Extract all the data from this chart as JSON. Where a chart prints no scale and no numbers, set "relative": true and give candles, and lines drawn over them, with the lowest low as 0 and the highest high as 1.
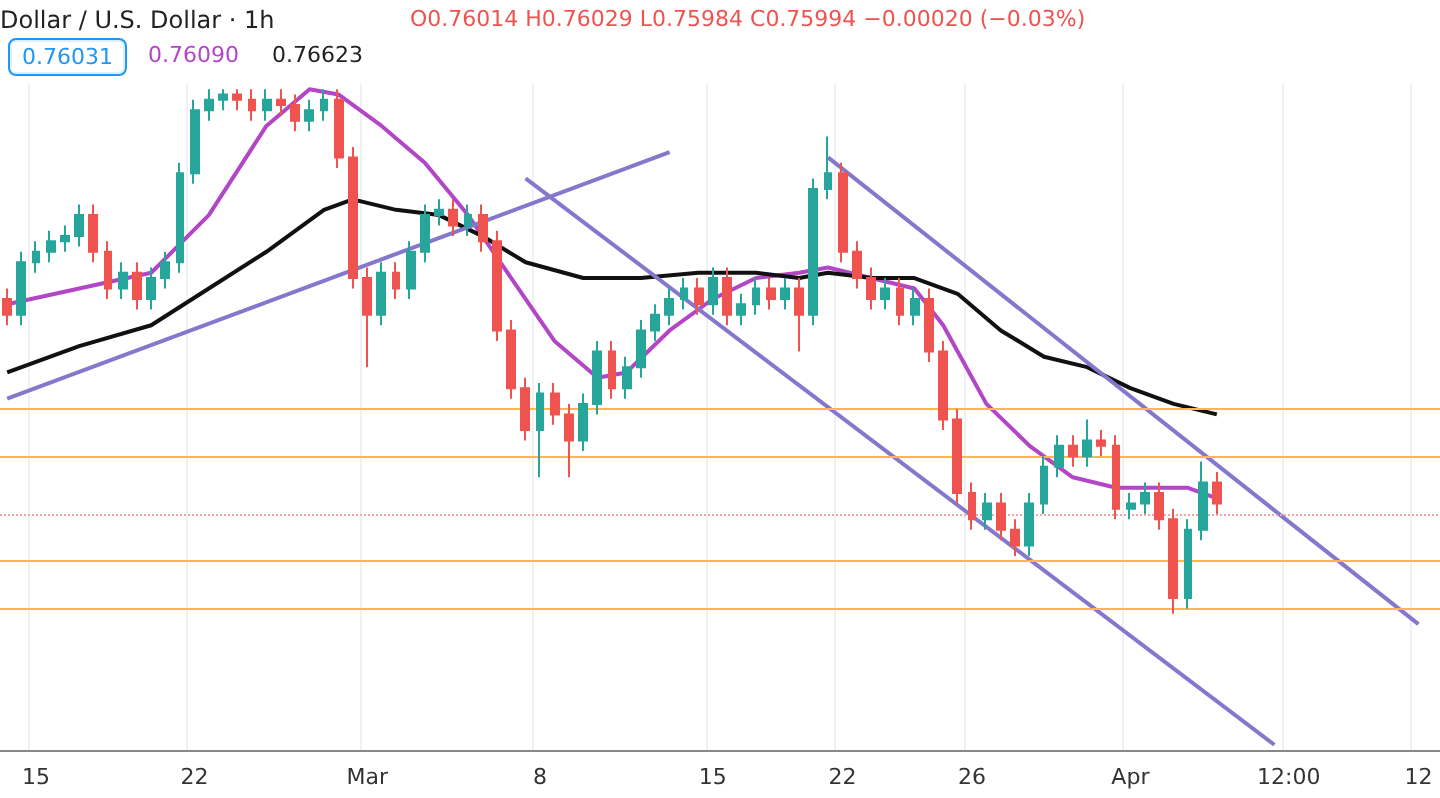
{
  "chart_data": {
    "type": "candlestick",
    "title": "Dollar / U.S. Dollar · 1h",
    "relative": true,
    "grid": "x",
    "categories": [
      null,
      null,
      "15",
      null,
      null,
      null,
      null,
      null,
      null,
      null,
      null,
      null,
      null,
      "22",
      null,
      null,
      null,
      null,
      null,
      null,
      null,
      null,
      null,
      null,
      null,
      "Mar",
      null,
      null,
      null,
      null,
      null,
      null,
      null,
      null,
      null,
      null,
      null,
      "8",
      null,
      null,
      null,
      null,
      null,
      null,
      null,
      null,
      null,
      null,
      null,
      "15",
      null,
      null,
      null,
      null,
      null,
      null,
      null,
      null,
      "22",
      null,
      null,
      null,
      null,
      null,
      null,
      null,
      null,
      "26",
      null,
      null,
      null,
      null,
      null,
      null,
      null,
      null,
      null,
      null,
      "Apr",
      null,
      null,
      null,
      null,
      null,
      null,
      null,
      null,
      null,
      null,
      "12:00",
      null,
      null,
      null,
      null,
      null,
      null,
      null,
      null,
      "12",
      null
    ],
    "ohlc": [
      [
        0.6,
        0.62,
        0.55,
        0.57
      ],
      [
        0.57,
        0.69,
        0.55,
        0.67
      ],
      [
        0.67,
        0.71,
        0.65,
        0.69
      ],
      [
        0.69,
        0.73,
        0.67,
        0.71
      ],
      [
        0.71,
        0.74,
        0.69,
        0.72
      ],
      [
        0.72,
        0.78,
        0.7,
        0.76
      ],
      [
        0.76,
        0.78,
        0.67,
        0.69
      ],
      [
        0.69,
        0.71,
        0.6,
        0.62
      ],
      [
        0.62,
        0.67,
        0.6,
        0.65
      ],
      [
        0.65,
        0.67,
        0.58,
        0.6
      ],
      [
        0.6,
        0.66,
        0.58,
        0.64
      ],
      [
        0.64,
        0.69,
        0.62,
        0.67
      ],
      [
        0.67,
        0.86,
        0.65,
        0.84
      ],
      [
        0.84,
        0.98,
        0.82,
        0.96
      ],
      [
        0.96,
        1.0,
        0.94,
        0.98
      ],
      [
        0.98,
        1.0,
        0.96,
        0.99
      ],
      [
        0.99,
        1.0,
        0.96,
        0.98
      ],
      [
        0.98,
        1.0,
        0.94,
        0.96
      ],
      [
        0.96,
        1.0,
        0.94,
        0.98
      ],
      [
        0.98,
        1.0,
        0.95,
        0.97
      ],
      [
        0.97,
        0.99,
        0.92,
        0.94
      ],
      [
        0.94,
        0.98,
        0.92,
        0.96
      ],
      [
        0.96,
        1.0,
        0.94,
        0.98
      ],
      [
        0.98,
        1.0,
        0.85,
        0.87
      ],
      [
        0.87,
        0.89,
        0.62,
        0.64
      ],
      [
        0.64,
        0.66,
        0.47,
        0.57
      ],
      [
        0.57,
        0.67,
        0.55,
        0.65
      ],
      [
        0.65,
        0.67,
        0.6,
        0.62
      ],
      [
        0.62,
        0.71,
        0.6,
        0.69
      ],
      [
        0.69,
        0.78,
        0.67,
        0.76
      ],
      [
        0.76,
        0.79,
        0.74,
        0.77
      ],
      [
        0.77,
        0.79,
        0.72,
        0.74
      ],
      [
        0.74,
        0.78,
        0.72,
        0.76
      ],
      [
        0.76,
        0.78,
        0.69,
        0.71
      ],
      [
        0.71,
        0.73,
        0.52,
        0.54
      ],
      [
        0.54,
        0.56,
        0.41,
        0.43
      ],
      [
        0.43,
        0.45,
        0.33,
        0.35
      ],
      [
        0.35,
        0.44,
        0.26,
        0.42
      ],
      [
        0.42,
        0.44,
        0.36,
        0.38
      ],
      [
        0.38,
        0.4,
        0.26,
        0.33
      ],
      [
        0.33,
        0.42,
        0.31,
        0.4
      ],
      [
        0.4,
        0.52,
        0.38,
        0.5
      ],
      [
        0.5,
        0.52,
        0.41,
        0.43
      ],
      [
        0.43,
        0.49,
        0.41,
        0.47
      ],
      [
        0.47,
        0.56,
        0.45,
        0.54
      ],
      [
        0.54,
        0.59,
        0.52,
        0.57
      ],
      [
        0.57,
        0.62,
        0.55,
        0.6
      ],
      [
        0.6,
        0.64,
        0.58,
        0.62
      ],
      [
        0.62,
        0.64,
        0.57,
        0.59
      ],
      [
        0.59,
        0.66,
        0.57,
        0.64
      ],
      [
        0.64,
        0.66,
        0.55,
        0.57
      ],
      [
        0.57,
        0.61,
        0.55,
        0.59
      ],
      [
        0.59,
        0.64,
        0.57,
        0.62
      ],
      [
        0.62,
        0.64,
        0.58,
        0.6
      ],
      [
        0.6,
        0.64,
        0.58,
        0.62
      ],
      [
        0.62,
        0.64,
        0.5,
        0.57
      ],
      [
        0.57,
        0.83,
        0.55,
        0.81
      ],
      [
        0.81,
        0.91,
        0.79,
        0.84
      ],
      [
        0.84,
        0.86,
        0.67,
        0.69
      ],
      [
        0.69,
        0.71,
        0.62,
        0.64
      ],
      [
        0.64,
        0.66,
        0.58,
        0.6
      ],
      [
        0.6,
        0.64,
        0.58,
        0.62
      ],
      [
        0.62,
        0.64,
        0.55,
        0.57
      ],
      [
        0.57,
        0.62,
        0.55,
        0.6
      ],
      [
        0.6,
        0.62,
        0.48,
        0.5
      ],
      [
        0.5,
        0.52,
        0.35,
        0.37
      ],
      [
        0.37,
        0.39,
        0.21,
        0.23
      ],
      [
        0.23,
        0.25,
        0.16,
        0.18
      ],
      [
        0.18,
        0.23,
        0.16,
        0.21
      ],
      [
        0.21,
        0.23,
        0.14,
        0.16
      ],
      [
        0.16,
        0.18,
        0.11,
        0.13
      ],
      [
        0.13,
        0.23,
        0.11,
        0.21
      ],
      [
        0.21,
        0.3,
        0.19,
        0.28
      ],
      [
        0.28,
        0.34,
        0.26,
        0.32
      ],
      [
        0.32,
        0.34,
        0.28,
        0.3
      ],
      [
        0.3,
        0.37,
        0.28,
        0.33
      ],
      [
        0.33,
        0.35,
        0.3,
        0.32
      ],
      [
        0.32,
        0.34,
        0.18,
        0.2
      ],
      [
        0.2,
        0.23,
        0.18,
        0.21
      ],
      [
        0.21,
        0.25,
        0.19,
        0.23
      ],
      [
        0.23,
        0.25,
        0.16,
        0.18
      ],
      [
        0.18,
        0.2,
        0.0,
        0.03
      ],
      [
        0.03,
        0.18,
        0.01,
        0.16
      ],
      [
        0.16,
        0.29,
        0.14,
        0.25
      ],
      [
        0.25,
        0.27,
        0.19,
        0.21
      ],
      null,
      null,
      null,
      null,
      null,
      null,
      null,
      null,
      null,
      null,
      null,
      null,
      null,
      null,
      null
    ],
    "series": [
      {
        "type": "line",
        "color": "#b246c6",
        "values": [
          0.59,
          null,
          null,
          null,
          null,
          0.62,
          null,
          null,
          null,
          null,
          0.65,
          null,
          null,
          null,
          0.76,
          null,
          null,
          null,
          0.93,
          null,
          null,
          1.0,
          null,
          0.99,
          null,
          null,
          0.93,
          null,
          null,
          0.86,
          null,
          null,
          0.76,
          null,
          null,
          0.64,
          null,
          null,
          0.52,
          null,
          null,
          0.45,
          null,
          0.46,
          null,
          null,
          0.54,
          null,
          null,
          0.6,
          null,
          null,
          0.64,
          null,
          null,
          0.65,
          null,
          0.66,
          null,
          null,
          0.64,
          null,
          null,
          0.62,
          null,
          0.55,
          null,
          null,
          0.4,
          null,
          null,
          0.32,
          null,
          null,
          0.26,
          null,
          null,
          0.24,
          null,
          null,
          0.24,
          null,
          0.24,
          null,
          0.22,
          null,
          null,
          null,
          null,
          null,
          null,
          null,
          null,
          null,
          null,
          null,
          null,
          null,
          null,
          null
        ]
      },
      {
        "type": "line",
        "color": "#111111",
        "values": [
          0.46,
          null,
          null,
          null,
          null,
          0.51,
          null,
          null,
          null,
          null,
          0.55,
          null,
          null,
          null,
          0.62,
          null,
          null,
          null,
          0.69,
          null,
          null,
          null,
          0.77,
          null,
          0.79,
          null,
          null,
          0.77,
          null,
          null,
          0.76,
          null,
          null,
          0.72,
          null,
          null,
          0.67,
          null,
          null,
          null,
          0.64,
          null,
          null,
          null,
          0.64,
          null,
          null,
          null,
          0.65,
          null,
          null,
          null,
          0.65,
          null,
          null,
          0.64,
          null,
          0.65,
          null,
          null,
          0.64,
          null,
          null,
          0.64,
          null,
          null,
          0.61,
          null,
          null,
          0.54,
          null,
          null,
          0.49,
          null,
          null,
          0.47,
          null,
          null,
          0.43,
          null,
          null,
          0.4,
          null,
          null,
          0.38,
          null,
          null,
          null,
          null,
          null,
          null,
          null,
          null,
          null,
          null,
          null,
          null,
          null,
          null,
          null
        ]
      },
      {
        "type": "line",
        "color": "#8478cc",
        "values": [
          0.41,
          null,
          null,
          null,
          null,
          null,
          null,
          null,
          null,
          null,
          null,
          null,
          null,
          null,
          null,
          null,
          null,
          null,
          null,
          null,
          null,
          null,
          null,
          null,
          null,
          null,
          null,
          null,
          null,
          null,
          null,
          null,
          null,
          null,
          null,
          null,
          null,
          null,
          null,
          null,
          null,
          null,
          null,
          null,
          null,
          null,
          0.88,
          null,
          null,
          null,
          null,
          null,
          null,
          null,
          null,
          null,
          null,
          null,
          null,
          null,
          null,
          null,
          null,
          null,
          null,
          null,
          null,
          null,
          null,
          null,
          null,
          null,
          null,
          null,
          null,
          null,
          null,
          null,
          null,
          null,
          null,
          null,
          null,
          null,
          null,
          null,
          null,
          null,
          null,
          null,
          null,
          null,
          null,
          null,
          null,
          null,
          null,
          null,
          null,
          null
        ]
      },
      {
        "type": "line",
        "color": "#8478cc",
        "values": [
          null,
          null,
          null,
          null,
          null,
          null,
          null,
          null,
          null,
          null,
          null,
          null,
          null,
          null,
          null,
          null,
          null,
          null,
          null,
          null,
          null,
          null,
          null,
          null,
          null,
          null,
          null,
          null,
          null,
          null,
          null,
          null,
          null,
          null,
          null,
          null,
          null,
          null,
          null,
          null,
          null,
          null,
          null,
          null,
          null,
          null,
          null,
          null,
          null,
          null,
          null,
          null,
          null,
          null,
          null,
          null,
          null,
          0.87,
          null,
          null,
          null,
          null,
          null,
          null,
          null,
          null,
          null,
          null,
          null,
          null,
          null,
          null,
          null,
          null,
          null,
          null,
          null,
          null,
          null,
          null,
          null,
          null,
          null,
          null,
          null,
          null,
          null,
          null,
          null,
          null,
          null,
          null,
          null,
          null,
          null,
          null,
          null,
          null,
          -0.02,
          null
        ]
      },
      {
        "type": "line",
        "color": "#8478cc",
        "values": [
          null,
          null,
          null,
          null,
          null,
          null,
          null,
          null,
          null,
          null,
          null,
          null,
          null,
          null,
          null,
          null,
          null,
          null,
          null,
          null,
          null,
          null,
          null,
          null,
          null,
          null,
          null,
          null,
          null,
          null,
          null,
          null,
          null,
          null,
          null,
          null,
          0.83,
          null,
          null,
          null,
          null,
          null,
          null,
          null,
          null,
          null,
          null,
          null,
          null,
          null,
          null,
          null,
          null,
          null,
          null,
          null,
          null,
          null,
          null,
          null,
          null,
          null,
          null,
          null,
          null,
          null,
          null,
          null,
          null,
          null,
          null,
          null,
          null,
          null,
          null,
          null,
          null,
          null,
          null,
          null,
          null,
          null,
          null,
          null,
          null,
          null,
          null,
          null,
          -0.25,
          null,
          null,
          null,
          null,
          null,
          null,
          null,
          null,
          null,
          null,
          null
        ]
      }
    ],
    "ref_lines": [
      {
        "axis": "y",
        "value": 0.39,
        "color": "#ffb74d",
        "line_style": "solid"
      },
      {
        "axis": "y",
        "value": 0.3,
        "color": "#ffb74d",
        "line_style": "solid"
      },
      {
        "axis": "y",
        "value": 0.1,
        "color": "#ffb74d",
        "line_style": "solid"
      },
      {
        "axis": "y",
        "value": 0.01,
        "color": "#ffb74d",
        "line_style": "solid"
      },
      {
        "axis": "y",
        "value": 0.19,
        "color": "#f4a6a6",
        "line_style": "dotted"
      }
    ],
    "annotations": [
      "O0.76014 H0.76029 L0.75984 C0.75994 −0.00020 (−0.03%)",
      "0.76031",
      "0.76090",
      "0.76623"
    ]
  }
}
